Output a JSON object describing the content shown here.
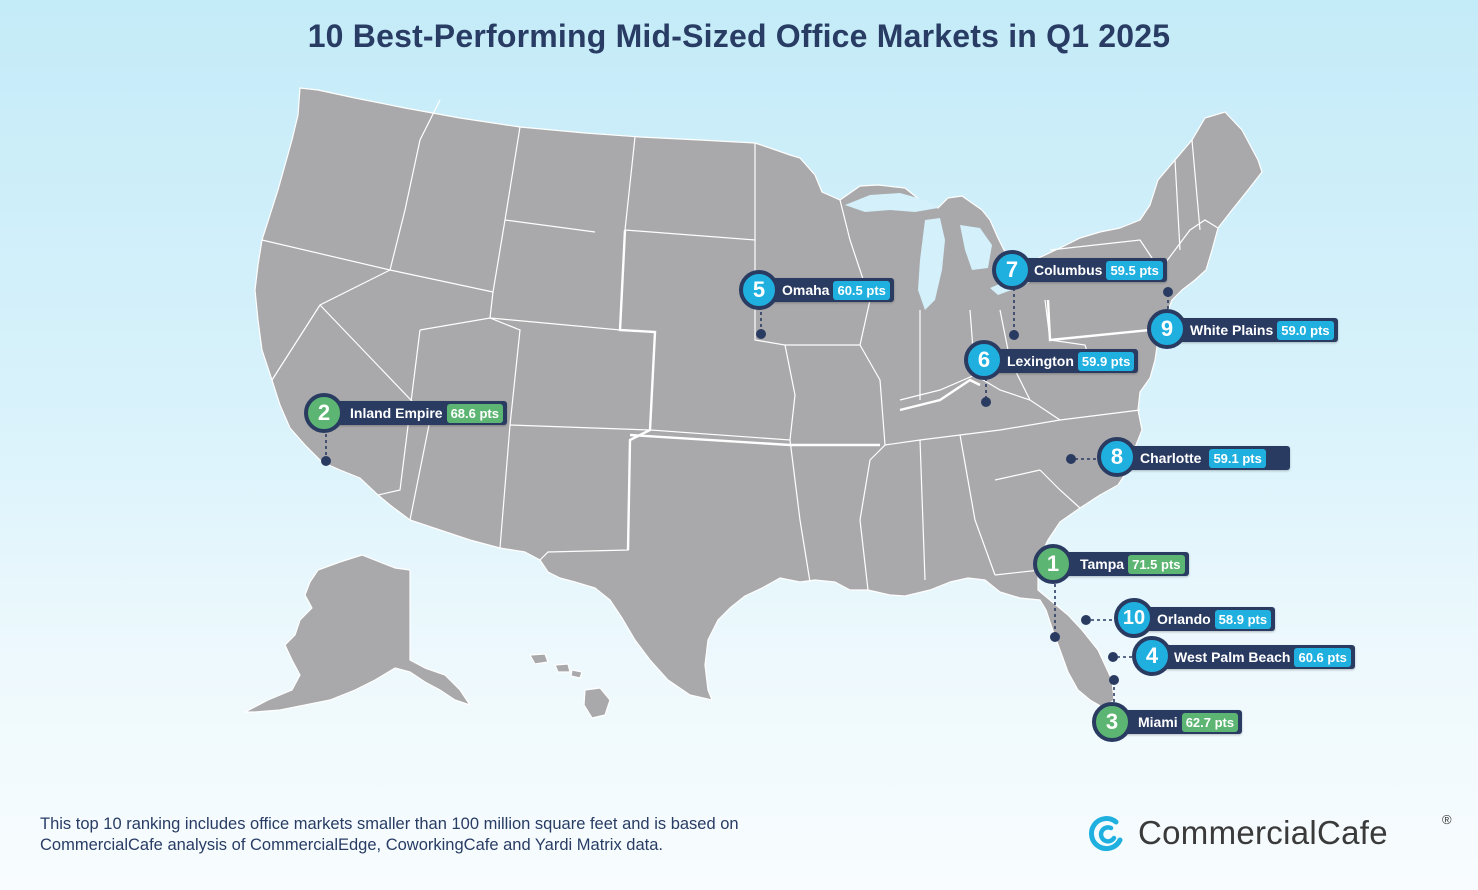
{
  "title": "10 Best-Performing Mid-Sized Office Markets in Q1 2025",
  "markets": [
    {
      "rank": "1",
      "name": "Tampa",
      "score": "71.5 pts",
      "color": "green"
    },
    {
      "rank": "2",
      "name": "Inland Empire",
      "score": "68.6 pts",
      "color": "green"
    },
    {
      "rank": "3",
      "name": "Miami",
      "score": "62.7 pts",
      "color": "green"
    },
    {
      "rank": "4",
      "name": "West Palm Beach",
      "score": "60.6 pts",
      "color": "blue"
    },
    {
      "rank": "5",
      "name": "Omaha",
      "score": "60.5 pts",
      "color": "blue"
    },
    {
      "rank": "6",
      "name": "Lexington",
      "score": "59.9 pts",
      "color": "blue"
    },
    {
      "rank": "7",
      "name": "Columbus",
      "score": "59.5 pts",
      "color": "blue"
    },
    {
      "rank": "8",
      "name": "Charlotte",
      "score": "59.1 pts",
      "color": "blue"
    },
    {
      "rank": "9",
      "name": "White Plains",
      "score": "59.0 pts",
      "color": "blue"
    },
    {
      "rank": "10",
      "name": "Orlando",
      "score": "58.9 pts",
      "color": "blue"
    }
  ],
  "colors": {
    "navy": "#2a3b62",
    "green": "#5cb572",
    "blue": "#1fb0e0",
    "land": "#a9a9ab"
  },
  "footnote": "This top 10 ranking includes office markets smaller than 100 million square feet and is based on CommercialCafe analysis of CommercialEdge, CoworkingCafe and Yardi Matrix data.",
  "brand": {
    "name": "CommercialCafe",
    "mark": "®",
    "logo_icon": "commercialcafe-logo-icon"
  }
}
